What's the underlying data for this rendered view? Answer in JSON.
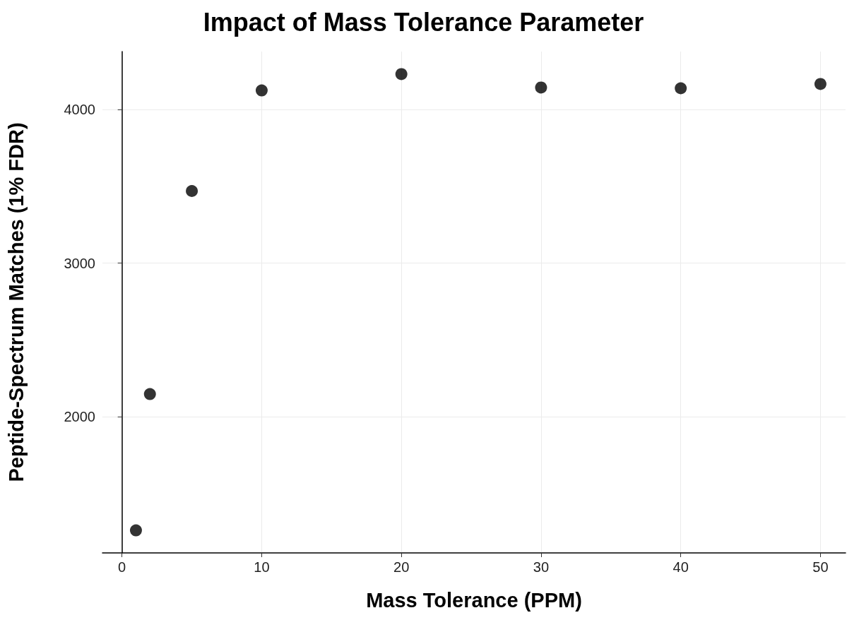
{
  "chart_data": {
    "type": "scatter",
    "title": "Impact of Mass Tolerance Parameter",
    "xlabel": "Mass Tolerance (PPM)",
    "ylabel": "Peptide-Spectrum Matches (1% FDR)",
    "x": [
      1,
      2,
      5,
      10,
      20,
      30,
      40,
      50
    ],
    "series": [
      {
        "color": "#000000",
        "values": [
          1260,
          2147,
          3469,
          4124,
          4230,
          4143,
          4138,
          4166
        ]
      }
    ],
    "xlim": [
      -1.4,
      51.8
    ],
    "xticks": [
      0,
      10,
      20,
      30,
      40,
      50
    ],
    "ylim": [
      1113,
      4377
    ],
    "yticks": [
      2000,
      3000,
      4000
    ],
    "grid": true,
    "marker": "circle"
  }
}
